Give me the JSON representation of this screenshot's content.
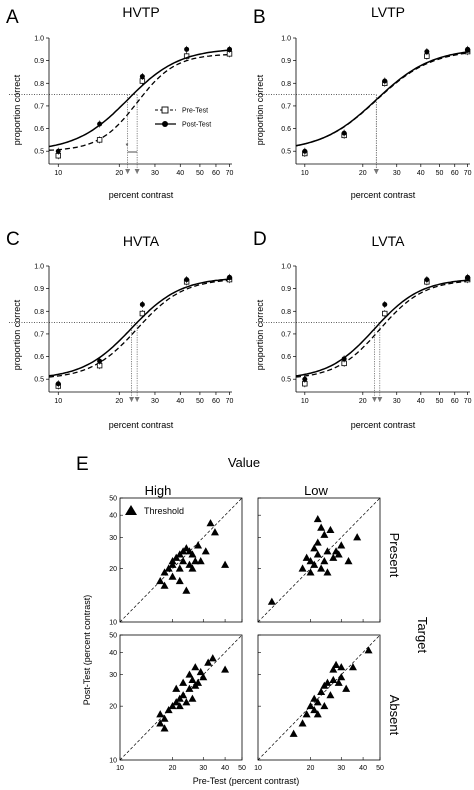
{
  "figure": {
    "panel_letters": [
      "A",
      "B",
      "C",
      "D",
      "E"
    ],
    "legend": {
      "pre": "Pre-Test",
      "post": "Post-Test"
    },
    "significance_mark": "*",
    "e_labels": {
      "value_title": "Value",
      "high": "High",
      "low": "Low",
      "present": "Present",
      "absent": "Absent",
      "target": "Target",
      "threshold": "Threshold",
      "ylabel": "Post-Test (percent contrast)",
      "xlabel": "Pre-Test (percent contrast)"
    }
  },
  "chart_data": [
    {
      "type": "line",
      "panel": "A",
      "title": "HVTP",
      "xlabel": "percent contrast",
      "ylabel": "proportion correct",
      "xscale": "log",
      "xlim": [
        9,
        72
      ],
      "ylim": [
        0.47,
        1.0
      ],
      "xticks": [
        10,
        20,
        30,
        40,
        50,
        60,
        70
      ],
      "yticks": [
        0.5,
        0.6,
        0.7,
        0.8,
        0.9,
        1.0
      ],
      "reference_y": 0.75,
      "thresholds": {
        "post": 22.0,
        "pre": 24.5
      },
      "series": [
        {
          "name": "Pre-Test",
          "marker": "open-square",
          "line": "dashed",
          "curve": {
            "threshold": 24.5,
            "slope": 4.6,
            "top": 0.93
          },
          "x": [
            10,
            16,
            26,
            43,
            70
          ],
          "y": [
            0.48,
            0.55,
            0.81,
            0.92,
            0.93
          ]
        },
        {
          "name": "Post-Test",
          "marker": "filled-circle",
          "line": "solid",
          "curve": {
            "threshold": 22.0,
            "slope": 3.4,
            "top": 0.955
          },
          "x": [
            10,
            16,
            26,
            43,
            70
          ],
          "y": [
            0.5,
            0.62,
            0.83,
            0.95,
            0.95
          ]
        }
      ]
    },
    {
      "type": "line",
      "panel": "B",
      "title": "LVTP",
      "xlabel": "percent contrast",
      "ylabel": "proportion correct",
      "xscale": "log",
      "xlim": [
        9,
        72
      ],
      "ylim": [
        0.47,
        1.0
      ],
      "xticks": [
        10,
        20,
        30,
        40,
        50,
        60,
        70
      ],
      "yticks": [
        0.5,
        0.6,
        0.7,
        0.8,
        0.9,
        1.0
      ],
      "reference_y": 0.75,
      "thresholds": {
        "post": 23.5,
        "pre": 23.5
      },
      "series": [
        {
          "name": "Pre-Test",
          "marker": "open-square",
          "line": "dashed",
          "curve": {
            "threshold": 23.5,
            "slope": 3.0,
            "top": 0.95
          },
          "x": [
            10,
            16,
            26,
            43,
            70
          ],
          "y": [
            0.49,
            0.57,
            0.8,
            0.92,
            0.94
          ]
        },
        {
          "name": "Post-Test",
          "marker": "filled-circle",
          "line": "solid",
          "curve": {
            "threshold": 23.5,
            "slope": 3.0,
            "top": 0.955
          },
          "x": [
            10,
            16,
            26,
            43,
            70
          ],
          "y": [
            0.5,
            0.58,
            0.81,
            0.94,
            0.95
          ]
        }
      ]
    },
    {
      "type": "line",
      "panel": "C",
      "title": "HVTA",
      "xlabel": "percent contrast",
      "ylabel": "proportion correct",
      "xscale": "log",
      "xlim": [
        9,
        72
      ],
      "ylim": [
        0.47,
        1.0
      ],
      "xticks": [
        10,
        20,
        30,
        40,
        50,
        60,
        70
      ],
      "yticks": [
        0.5,
        0.6,
        0.7,
        0.8,
        0.9,
        1.0
      ],
      "reference_y": 0.75,
      "thresholds": {
        "post": 23.0,
        "pre": 24.5
      },
      "series": [
        {
          "name": "Pre-Test",
          "marker": "open-square",
          "line": "dashed",
          "curve": {
            "threshold": 24.5,
            "slope": 3.8,
            "top": 0.945
          },
          "x": [
            10,
            16,
            26,
            43,
            70
          ],
          "y": [
            0.47,
            0.56,
            0.79,
            0.93,
            0.94
          ]
        },
        {
          "name": "Post-Test",
          "marker": "filled-circle",
          "line": "solid",
          "curve": {
            "threshold": 23.0,
            "slope": 3.6,
            "top": 0.95
          },
          "x": [
            10,
            16,
            26,
            43,
            70
          ],
          "y": [
            0.48,
            0.58,
            0.83,
            0.94,
            0.95
          ]
        }
      ]
    },
    {
      "type": "line",
      "panel": "D",
      "title": "LVTA",
      "xlabel": "percent contrast",
      "ylabel": "proportion correct",
      "xscale": "log",
      "xlim": [
        9,
        72
      ],
      "ylim": [
        0.47,
        1.0
      ],
      "xticks": [
        10,
        20,
        30,
        40,
        50,
        60,
        70
      ],
      "yticks": [
        0.5,
        0.6,
        0.7,
        0.8,
        0.9,
        1.0
      ],
      "reference_y": 0.75,
      "thresholds": {
        "post": 23.0,
        "pre": 24.5
      },
      "series": [
        {
          "name": "Pre-Test",
          "marker": "open-square",
          "line": "dashed",
          "curve": {
            "threshold": 24.5,
            "slope": 3.8,
            "top": 0.94
          },
          "x": [
            10,
            16,
            26,
            43,
            70
          ],
          "y": [
            0.48,
            0.57,
            0.79,
            0.93,
            0.94
          ]
        },
        {
          "name": "Post-Test",
          "marker": "filled-circle",
          "line": "solid",
          "curve": {
            "threshold": 23.0,
            "slope": 3.6,
            "top": 0.945
          },
          "x": [
            10,
            16,
            26,
            43,
            70
          ],
          "y": [
            0.5,
            0.59,
            0.83,
            0.94,
            0.95
          ]
        }
      ]
    },
    {
      "type": "scatter",
      "panel": "E-high-present",
      "xscale": "log",
      "yscale": "log",
      "xlim": [
        10,
        50
      ],
      "ylim": [
        10,
        50
      ],
      "xticks": [
        10,
        20,
        30,
        40,
        50
      ],
      "yticks": [
        10,
        20,
        30,
        40,
        50
      ],
      "identity_line": true,
      "legend": "Threshold",
      "points": [
        [
          17,
          17
        ],
        [
          18,
          19
        ],
        [
          18,
          16
        ],
        [
          19,
          20
        ],
        [
          20,
          21
        ],
        [
          20,
          18
        ],
        [
          21,
          23
        ],
        [
          22,
          20
        ],
        [
          22,
          24
        ],
        [
          23,
          25
        ],
        [
          23,
          22
        ],
        [
          24,
          26
        ],
        [
          25,
          25
        ],
        [
          25,
          21
        ],
        [
          26,
          24
        ],
        [
          26,
          20
        ],
        [
          27,
          22
        ],
        [
          28,
          27
        ],
        [
          29,
          22
        ],
        [
          31,
          25
        ],
        [
          33,
          36
        ],
        [
          35,
          32
        ],
        [
          40,
          21
        ],
        [
          24,
          15
        ],
        [
          22,
          17
        ],
        [
          20,
          22
        ]
      ]
    },
    {
      "type": "scatter",
      "panel": "E-low-present",
      "xscale": "log",
      "yscale": "log",
      "xlim": [
        10,
        50
      ],
      "ylim": [
        10,
        50
      ],
      "xticks": [
        10,
        20,
        30,
        40,
        50
      ],
      "yticks": [
        10,
        20,
        30,
        40,
        50
      ],
      "identity_line": true,
      "points": [
        [
          12,
          13
        ],
        [
          18,
          20
        ],
        [
          19,
          23
        ],
        [
          20,
          22
        ],
        [
          20,
          19
        ],
        [
          21,
          26
        ],
        [
          21,
          21
        ],
        [
          22,
          38
        ],
        [
          22,
          24
        ],
        [
          23,
          34
        ],
        [
          23,
          20
        ],
        [
          24,
          31
        ],
        [
          24,
          22
        ],
        [
          25,
          25
        ],
        [
          25,
          19
        ],
        [
          26,
          33
        ],
        [
          27,
          23
        ],
        [
          28,
          25
        ],
        [
          29,
          24
        ],
        [
          30,
          27
        ],
        [
          33,
          22
        ],
        [
          37,
          30
        ],
        [
          22,
          28
        ]
      ]
    },
    {
      "type": "scatter",
      "panel": "E-high-absent",
      "xscale": "log",
      "yscale": "log",
      "xlim": [
        10,
        50
      ],
      "ylim": [
        10,
        50
      ],
      "xticks": [
        10,
        20,
        30,
        40,
        50
      ],
      "yticks": [
        10,
        20,
        30,
        40,
        50
      ],
      "identity_line": true,
      "points": [
        [
          17,
          18
        ],
        [
          17,
          16
        ],
        [
          18,
          15
        ],
        [
          18,
          17
        ],
        [
          19,
          19
        ],
        [
          20,
          20
        ],
        [
          21,
          21
        ],
        [
          21,
          25
        ],
        [
          22,
          22
        ],
        [
          23,
          23
        ],
        [
          23,
          27
        ],
        [
          24,
          21
        ],
        [
          25,
          25
        ],
        [
          25,
          30
        ],
        [
          26,
          22
        ],
        [
          26,
          28
        ],
        [
          27,
          26
        ],
        [
          27,
          33
        ],
        [
          28,
          27
        ],
        [
          29,
          31
        ],
        [
          30,
          29
        ],
        [
          32,
          35
        ],
        [
          34,
          37
        ],
        [
          40,
          32
        ],
        [
          22,
          20
        ]
      ]
    },
    {
      "type": "scatter",
      "panel": "E-low-absent",
      "xscale": "log",
      "yscale": "log",
      "xlim": [
        10,
        50
      ],
      "ylim": [
        10,
        50
      ],
      "xticks": [
        10,
        20,
        30,
        40,
        50
      ],
      "yticks": [
        10,
        20,
        30,
        40,
        50
      ],
      "identity_line": true,
      "points": [
        [
          16,
          14
        ],
        [
          18,
          16
        ],
        [
          19,
          18
        ],
        [
          20,
          20
        ],
        [
          21,
          19
        ],
        [
          21,
          22
        ],
        [
          22,
          21
        ],
        [
          23,
          24
        ],
        [
          24,
          20
        ],
        [
          24,
          26
        ],
        [
          25,
          27
        ],
        [
          26,
          23
        ],
        [
          27,
          28
        ],
        [
          27,
          32
        ],
        [
          28,
          34
        ],
        [
          29,
          27
        ],
        [
          30,
          29
        ],
        [
          30,
          33
        ],
        [
          32,
          25
        ],
        [
          35,
          33
        ],
        [
          43,
          41
        ],
        [
          22,
          18
        ]
      ]
    }
  ]
}
